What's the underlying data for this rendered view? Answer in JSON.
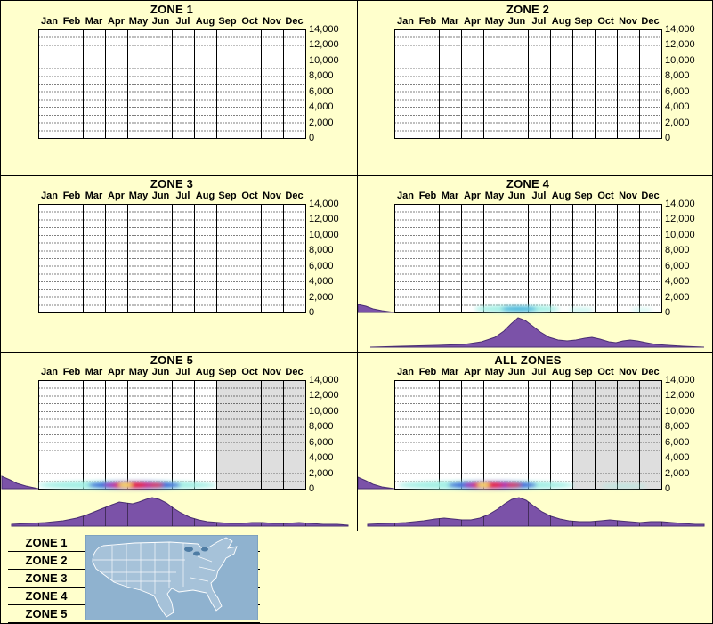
{
  "colors": {
    "background": "#FFFFCC",
    "grid_bg": "#FFFFFF",
    "grid_line": "#000000",
    "shade": "#DEDEDE",
    "ridge_fill": "#7B52A8",
    "ridge_stroke": "#4A2E73",
    "map_water": "#8FB2CF",
    "map_land": "#A6C2D9",
    "map_lake": "#4E7CA4",
    "map_border": "#6E93AC"
  },
  "months": [
    "Jan",
    "Feb",
    "Mar",
    "Apr",
    "May",
    "Jun",
    "Jul",
    "Aug",
    "Sep",
    "Oct",
    "Nov",
    "Dec"
  ],
  "y_ticks": [
    "14,000",
    "12,000",
    "10,000",
    "8,000",
    "6,000",
    "4,000",
    "2,000",
    "0"
  ],
  "legend": {
    "items": [
      "ZONE 1",
      "ZONE 2",
      "ZONE 3",
      "ZONE 4",
      "ZONE 5"
    ]
  },
  "panels": [
    {
      "key": "zone1",
      "title": "ZONE 1",
      "row": 0,
      "col": 0,
      "shade_from_month": null,
      "heat": [],
      "left_marginal": null,
      "ridge": null,
      "ridge_lines": false
    },
    {
      "key": "zone2",
      "title": "ZONE 2",
      "row": 0,
      "col": 1,
      "shade_from_month": null,
      "heat": [],
      "left_marginal": null,
      "ridge": null,
      "ridge_lines": false
    },
    {
      "key": "zone3",
      "title": "ZONE 3",
      "row": 1,
      "col": 0,
      "shade_from_month": null,
      "heat": [],
      "left_marginal": null,
      "ridge": null,
      "ridge_lines": false
    },
    {
      "key": "zone4",
      "title": "ZONE 4",
      "row": 1,
      "col": 1,
      "shade_from_month": null,
      "heat": [
        [
          180,
          4,
          48,
          4,
          "#9FEFE4",
          0.95
        ],
        [
          182,
          4,
          20,
          3,
          "#35AADC",
          0.85
        ],
        [
          252,
          3,
          14,
          2.5,
          "#9FEFE4",
          0.55
        ],
        [
          320,
          3,
          12,
          2,
          "#9FEFE4",
          0.45
        ]
      ],
      "left_marginal": [
        [
          1,
          9
        ],
        [
          10,
          7
        ],
        [
          18,
          4
        ],
        [
          28,
          2
        ],
        [
          42,
          0
        ]
      ],
      "ridge": [
        [
          15,
          0
        ],
        [
          50,
          1
        ],
        [
          90,
          2
        ],
        [
          120,
          3
        ],
        [
          140,
          6
        ],
        [
          155,
          11
        ],
        [
          165,
          18
        ],
        [
          173,
          26
        ],
        [
          181,
          33
        ],
        [
          189,
          30
        ],
        [
          197,
          24
        ],
        [
          206,
          17
        ],
        [
          216,
          11
        ],
        [
          226,
          8
        ],
        [
          236,
          7
        ],
        [
          246,
          8
        ],
        [
          256,
          10
        ],
        [
          264,
          11
        ],
        [
          273,
          9
        ],
        [
          283,
          6
        ],
        [
          291,
          5
        ],
        [
          299,
          7
        ],
        [
          307,
          8
        ],
        [
          315,
          7
        ],
        [
          325,
          5
        ],
        [
          336,
          3
        ],
        [
          350,
          2
        ],
        [
          366,
          1
        ],
        [
          390,
          0
        ]
      ],
      "ridge_lines": false
    },
    {
      "key": "zone5",
      "title": "ZONE 5",
      "row": 2,
      "col": 0,
      "shade_from_month": 8,
      "heat": [
        [
          142,
          4,
          100,
          5,
          "#9FEFE4",
          0.95
        ],
        [
          150,
          4,
          52,
          4.5,
          "#2B50D8",
          0.9
        ],
        [
          148,
          4,
          32,
          4,
          "#B326B8",
          0.95
        ],
        [
          146,
          4,
          20,
          3.2,
          "#EE2222",
          0.95
        ],
        [
          140,
          4,
          8,
          2.4,
          "#FFF25E",
          0.95
        ],
        [
          174,
          4,
          9,
          2.6,
          "#EE3333",
          0.8
        ]
      ],
      "left_marginal": [
        [
          1,
          14
        ],
        [
          10,
          10
        ],
        [
          18,
          6
        ],
        [
          28,
          3
        ],
        [
          42,
          0
        ]
      ],
      "ridge": [
        [
          12,
          2
        ],
        [
          30,
          3
        ],
        [
          50,
          4
        ],
        [
          70,
          6
        ],
        [
          85,
          9
        ],
        [
          95,
          12
        ],
        [
          105,
          16
        ],
        [
          115,
          20
        ],
        [
          125,
          24
        ],
        [
          133,
          27
        ],
        [
          140,
          26
        ],
        [
          148,
          25
        ],
        [
          155,
          27
        ],
        [
          163,
          30
        ],
        [
          170,
          32
        ],
        [
          178,
          30
        ],
        [
          186,
          26
        ],
        [
          194,
          20
        ],
        [
          202,
          15
        ],
        [
          212,
          10
        ],
        [
          222,
          7
        ],
        [
          232,
          5
        ],
        [
          245,
          4
        ],
        [
          258,
          3
        ],
        [
          270,
          3
        ],
        [
          282,
          4
        ],
        [
          294,
          4
        ],
        [
          306,
          3
        ],
        [
          320,
          3
        ],
        [
          335,
          4
        ],
        [
          348,
          3
        ],
        [
          362,
          2
        ],
        [
          378,
          2
        ],
        [
          390,
          1
        ]
      ],
      "ridge_lines": true
    },
    {
      "key": "allzones",
      "title": "ALL ZONES",
      "row": 2,
      "col": 1,
      "shade_from_month": 8,
      "heat": [
        [
          145,
          4,
          99,
          5,
          "#9FEFE4",
          0.95
        ],
        [
          300,
          3,
          26,
          2.5,
          "#9FEFE4",
          0.5
        ],
        [
          152,
          4,
          50,
          4.5,
          "#2B50D8",
          0.9
        ],
        [
          150,
          4,
          30,
          4,
          "#B326B8",
          0.95
        ],
        [
          147,
          4,
          18,
          3.2,
          "#EE2222",
          0.95
        ],
        [
          142,
          4,
          7,
          2.4,
          "#FFF25E",
          0.95
        ],
        [
          176,
          4,
          9,
          2.6,
          "#EE3333",
          0.8
        ]
      ],
      "left_marginal": [
        [
          1,
          13
        ],
        [
          10,
          9
        ],
        [
          18,
          5
        ],
        [
          28,
          2
        ],
        [
          42,
          0
        ]
      ],
      "ridge": [
        [
          12,
          2
        ],
        [
          35,
          3
        ],
        [
          55,
          4
        ],
        [
          75,
          6
        ],
        [
          88,
          8
        ],
        [
          98,
          9
        ],
        [
          108,
          8
        ],
        [
          118,
          7
        ],
        [
          128,
          7
        ],
        [
          138,
          9
        ],
        [
          148,
          13
        ],
        [
          158,
          19
        ],
        [
          166,
          25
        ],
        [
          174,
          30
        ],
        [
          182,
          32
        ],
        [
          190,
          29
        ],
        [
          198,
          23
        ],
        [
          208,
          16
        ],
        [
          218,
          11
        ],
        [
          228,
          8
        ],
        [
          238,
          6
        ],
        [
          250,
          5
        ],
        [
          262,
          5
        ],
        [
          274,
          6
        ],
        [
          284,
          7
        ],
        [
          294,
          6
        ],
        [
          306,
          5
        ],
        [
          318,
          4
        ],
        [
          330,
          5
        ],
        [
          342,
          5
        ],
        [
          354,
          4
        ],
        [
          366,
          3
        ],
        [
          380,
          2
        ],
        [
          390,
          2
        ]
      ],
      "ridge_lines": true
    }
  ],
  "chart_data": [
    {
      "type": "heatmap",
      "title": "ZONE 1",
      "x": [
        "Jan",
        "Feb",
        "Mar",
        "Apr",
        "May",
        "Jun",
        "Jul",
        "Aug",
        "Sep",
        "Oct",
        "Nov",
        "Dec"
      ],
      "ylim": [
        0,
        14000
      ],
      "y_ticks": [
        0,
        2000,
        4000,
        6000,
        8000,
        10000,
        12000,
        14000
      ],
      "grid": true,
      "monthly_relative_density": [
        0,
        0,
        0,
        0,
        0,
        0,
        0,
        0,
        0,
        0,
        0,
        0
      ],
      "shaded_months": []
    },
    {
      "type": "heatmap",
      "title": "ZONE 2",
      "x": [
        "Jan",
        "Feb",
        "Mar",
        "Apr",
        "May",
        "Jun",
        "Jul",
        "Aug",
        "Sep",
        "Oct",
        "Nov",
        "Dec"
      ],
      "ylim": [
        0,
        14000
      ],
      "y_ticks": [
        0,
        2000,
        4000,
        6000,
        8000,
        10000,
        12000,
        14000
      ],
      "grid": true,
      "monthly_relative_density": [
        0,
        0,
        0,
        0,
        0,
        0,
        0,
        0,
        0,
        0,
        0,
        0
      ],
      "shaded_months": []
    },
    {
      "type": "heatmap",
      "title": "ZONE 3",
      "x": [
        "Jan",
        "Feb",
        "Mar",
        "Apr",
        "May",
        "Jun",
        "Jul",
        "Aug",
        "Sep",
        "Oct",
        "Nov",
        "Dec"
      ],
      "ylim": [
        0,
        14000
      ],
      "y_ticks": [
        0,
        2000,
        4000,
        6000,
        8000,
        10000,
        12000,
        14000
      ],
      "grid": true,
      "monthly_relative_density": [
        0,
        0,
        0,
        0,
        0,
        0,
        0,
        0,
        0,
        0,
        0,
        0
      ],
      "shaded_months": []
    },
    {
      "type": "heatmap",
      "title": "ZONE 4",
      "x": [
        "Jan",
        "Feb",
        "Mar",
        "Apr",
        "May",
        "Jun",
        "Jul",
        "Aug",
        "Sep",
        "Oct",
        "Nov",
        "Dec"
      ],
      "ylim": [
        0,
        14000
      ],
      "y_ticks": [
        0,
        2000,
        4000,
        6000,
        8000,
        10000,
        12000,
        14000
      ],
      "grid": true,
      "heat_band_value_range": [
        0,
        700
      ],
      "monthly_relative_density": [
        0,
        0,
        0,
        0.05,
        0.5,
        1,
        0.5,
        0.1,
        0.15,
        0,
        0.05,
        0.05
      ],
      "ridge_monthly_relative": [
        0,
        0.03,
        0.09,
        0.18,
        0.45,
        1,
        0.5,
        0.25,
        0.3,
        0.15,
        0.24,
        0.09
      ],
      "shaded_months": []
    },
    {
      "type": "heatmap",
      "title": "ZONE 5",
      "x": [
        "Jan",
        "Feb",
        "Mar",
        "Apr",
        "May",
        "Jun",
        "Jul",
        "Aug",
        "Sep",
        "Oct",
        "Nov",
        "Dec"
      ],
      "ylim": [
        0,
        14000
      ],
      "y_ticks": [
        0,
        2000,
        4000,
        6000,
        8000,
        10000,
        12000,
        14000
      ],
      "grid": true,
      "heat_band_value_range": [
        0,
        700
      ],
      "monthly_relative_density": [
        0.3,
        0.35,
        0.45,
        0.9,
        1,
        0.9,
        0.5,
        0.3,
        0,
        0,
        0,
        0
      ],
      "ridge_monthly_relative": [
        0.1,
        0.2,
        0.35,
        0.8,
        0.85,
        1,
        0.45,
        0.17,
        0.12,
        0.12,
        0.13,
        0.07
      ],
      "shaded_months": [
        "Sep",
        "Oct",
        "Nov",
        "Dec"
      ]
    },
    {
      "type": "heatmap",
      "title": "ALL ZONES",
      "x": [
        "Jan",
        "Feb",
        "Mar",
        "Apr",
        "May",
        "Jun",
        "Jul",
        "Aug",
        "Sep",
        "Oct",
        "Nov",
        "Dec"
      ],
      "ylim": [
        0,
        14000
      ],
      "y_ticks": [
        0,
        2000,
        4000,
        6000,
        8000,
        10000,
        12000,
        14000
      ],
      "grid": true,
      "heat_band_value_range": [
        0,
        700
      ],
      "monthly_relative_density": [
        0.25,
        0.3,
        0.4,
        0.85,
        1,
        0.9,
        0.5,
        0.3,
        0.15,
        0.1,
        0.05,
        0
      ],
      "ridge_monthly_relative": [
        0.1,
        0.2,
        0.27,
        0.25,
        0.55,
        1,
        0.5,
        0.25,
        0.18,
        0.2,
        0.16,
        0.1
      ],
      "shaded_months": [
        "Sep",
        "Oct",
        "Nov",
        "Dec"
      ]
    }
  ]
}
